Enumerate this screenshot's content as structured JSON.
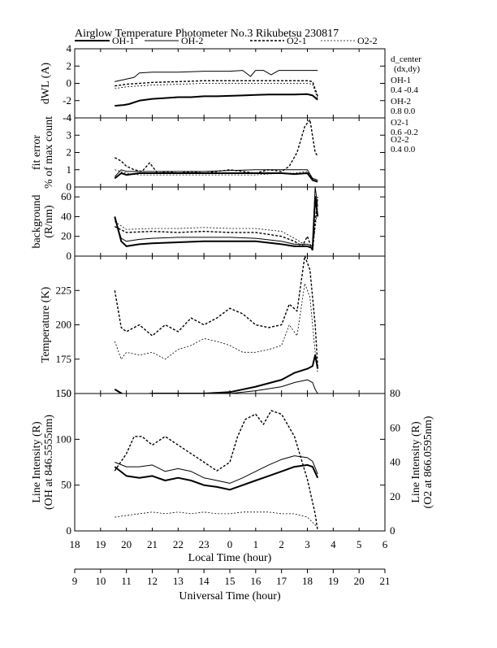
{
  "title": "Airglow Temperature Photometer No.3  Rikubetsu    230817",
  "legend": [
    {
      "label": "OH-1",
      "style": "solid-thick"
    },
    {
      "label": "OH-2",
      "style": "solid-thin"
    },
    {
      "label": "O2-1",
      "style": "dashed-thick"
    },
    {
      "label": "O2-2",
      "style": "dashed-thin"
    }
  ],
  "d_center": {
    "heading": "d_center",
    "sub": "(dx,dy)",
    "entries": [
      {
        "name": "OH-1",
        "value": "0.4   -0.4"
      },
      {
        "name": "OH-2",
        "value": "0.8   0.0"
      },
      {
        "name": "O2-1",
        "value": "0.6   -0.2"
      },
      {
        "name": "O2-2",
        "value": "0.4   0.0"
      }
    ]
  },
  "x_axis_local": {
    "label": "Local Time (hour)",
    "ticks": [
      "18",
      "19",
      "20",
      "21",
      "22",
      "23",
      "0",
      "1",
      "2",
      "3",
      "4",
      "5",
      "6"
    ]
  },
  "x_axis_ut": {
    "label": "Universal Time (hour)",
    "ticks": [
      "9",
      "10",
      "11",
      "12",
      "13",
      "14",
      "15",
      "16",
      "17",
      "18",
      "19",
      "20",
      "21"
    ]
  },
  "chart_data": [
    {
      "type": "line",
      "ylabel": "dWL (A)",
      "ylim": [
        -4,
        4
      ],
      "yticks": [
        "4",
        "2",
        "0",
        "-2",
        "-4"
      ],
      "x_unit": "Local Time (hour)",
      "series": [
        {
          "name": "OH-1",
          "x": [
            19.55,
            19.9,
            20.1,
            20.5,
            21,
            21.5,
            22,
            22.5,
            23,
            23.5,
            24,
            24.5,
            25,
            25.5,
            26,
            26.5,
            27,
            27.2,
            27.4
          ],
          "y": [
            -2.6,
            -2.5,
            -2.4,
            -2.0,
            -1.8,
            -1.7,
            -1.6,
            -1.6,
            -1.5,
            -1.5,
            -1.45,
            -1.4,
            -1.35,
            -1.3,
            -1.3,
            -1.3,
            -1.25,
            -1.4,
            -1.9
          ]
        },
        {
          "name": "OH-2",
          "x": [
            19.55,
            20,
            20.3,
            20.5,
            21,
            22,
            23,
            24,
            24.5,
            24.8,
            25,
            25.3,
            25.6,
            25.9,
            26.2,
            27,
            27.4
          ],
          "y": [
            0.2,
            0.5,
            0.7,
            1.2,
            1.3,
            1.3,
            1.4,
            1.4,
            1.5,
            0.8,
            1.5,
            1.5,
            1.0,
            1.5,
            1.5,
            1.5,
            1.5
          ]
        },
        {
          "name": "O2-1",
          "x": [
            19.55,
            20,
            21,
            22,
            23,
            24,
            25,
            26,
            27,
            27.2,
            27.4
          ],
          "y": [
            -0.3,
            -0.1,
            0.1,
            0.2,
            0.3,
            0.3,
            0.3,
            0.3,
            0.3,
            0.2,
            -1.5
          ]
        },
        {
          "name": "O2-2",
          "x": [
            19.55,
            20,
            21,
            22,
            23,
            24,
            25,
            26,
            27,
            27.2,
            27.4
          ],
          "y": [
            -0.6,
            -0.4,
            -0.2,
            -0.1,
            0.0,
            0.0,
            0.0,
            0.0,
            0.0,
            -0.1,
            -1.8
          ]
        }
      ]
    },
    {
      "type": "line",
      "ylabel": "fit error",
      "ylabel2": "% of max count",
      "ylim": [
        0,
        4
      ],
      "yticks": [
        "4",
        "3",
        "2",
        "1",
        "0"
      ],
      "series": [
        {
          "name": "OH-1",
          "x": [
            19.55,
            19.8,
            20,
            20.5,
            21,
            22,
            23,
            24,
            25,
            26,
            26.5,
            27,
            27.2,
            27.4
          ],
          "y": [
            0.5,
            0.8,
            0.7,
            0.8,
            0.8,
            0.8,
            0.8,
            0.8,
            0.8,
            0.8,
            0.75,
            0.8,
            0.4,
            0.3
          ]
        },
        {
          "name": "OH-2",
          "x": [
            19.55,
            19.8,
            20,
            20.5,
            21,
            22,
            23,
            24,
            25,
            26,
            26.5,
            27,
            27.2,
            27.4
          ],
          "y": [
            0.6,
            1.0,
            0.9,
            0.9,
            0.9,
            0.9,
            0.9,
            0.95,
            1.0,
            1.0,
            1.0,
            1.0,
            0.5,
            0.4
          ]
        },
        {
          "name": "O2-1",
          "x": [
            19.55,
            19.8,
            20,
            20.3,
            20.6,
            20.9,
            21.2,
            21.6,
            22,
            22.5,
            23,
            23.5,
            24,
            24.5,
            25,
            25.5,
            26,
            26.3,
            26.6,
            26.9,
            27.1,
            27.3,
            27.4
          ],
          "y": [
            1.7,
            1.5,
            1.2,
            1.0,
            0.9,
            1.4,
            0.8,
            0.9,
            0.8,
            0.9,
            0.8,
            0.9,
            1.0,
            0.9,
            0.8,
            1.0,
            0.9,
            1.2,
            2.0,
            3.5,
            3.9,
            2.0,
            1.8
          ]
        },
        {
          "name": "O2-2",
          "x": [
            19.55,
            20,
            20.5,
            21,
            22,
            23,
            24,
            25,
            26,
            26.5,
            27,
            27.2,
            27.4
          ],
          "y": [
            1.0,
            0.8,
            0.7,
            0.7,
            0.7,
            0.7,
            0.7,
            0.7,
            0.8,
            0.8,
            0.9,
            0.5,
            0.4
          ]
        }
      ]
    },
    {
      "type": "line",
      "ylabel": "background",
      "ylabel2": "(R/nm)",
      "ylim": [
        0,
        70
      ],
      "yticks": [
        "60",
        "40",
        "20",
        "0"
      ],
      "series": [
        {
          "name": "OH-1",
          "x": [
            19.55,
            19.8,
            20,
            20.5,
            21,
            22,
            23,
            24,
            25,
            26,
            26.5,
            27,
            27.2,
            27.3,
            27.4
          ],
          "y": [
            40,
            15,
            10,
            12,
            13,
            14,
            15,
            15,
            15,
            12,
            10,
            10,
            8,
            60,
            40
          ]
        },
        {
          "name": "OH-2",
          "x": [
            19.55,
            19.8,
            20,
            20.5,
            21,
            22,
            23,
            24,
            25,
            26,
            26.5,
            27,
            27.2,
            27.3,
            27.4
          ],
          "y": [
            38,
            18,
            15,
            17,
            18,
            19,
            19,
            19,
            18,
            15,
            12,
            12,
            10,
            70,
            50
          ]
        },
        {
          "name": "O2-1",
          "x": [
            19.55,
            20,
            21,
            22,
            23,
            24,
            25,
            26,
            26.5,
            26.8,
            27,
            27.2,
            27.4
          ],
          "y": [
            30,
            24,
            25,
            24,
            25,
            24,
            24,
            20,
            15,
            10,
            20,
            5,
            60
          ]
        },
        {
          "name": "O2-2",
          "x": [
            19.55,
            20,
            21,
            22,
            23,
            24,
            25,
            26,
            26.5,
            27,
            27.2,
            27.4
          ],
          "y": [
            35,
            27,
            28,
            28,
            29,
            28,
            28,
            25,
            18,
            10,
            8,
            50
          ]
        }
      ]
    },
    {
      "type": "line",
      "ylabel": "Temperature (K)",
      "ylim": [
        150,
        250
      ],
      "yticks": [
        "225",
        "200",
        "175",
        "150"
      ],
      "series": [
        {
          "name": "OH-1",
          "x": [
            19.55,
            20,
            21,
            22,
            23,
            24,
            25,
            26,
            26.5,
            27,
            27.2,
            27.3,
            27.4
          ],
          "y": [
            153,
            148,
            150,
            150,
            150,
            151,
            155,
            160,
            165,
            168,
            170,
            178,
            168
          ]
        },
        {
          "name": "OH-2",
          "x": [
            19.55,
            20,
            21,
            22,
            23,
            24,
            25,
            26,
            26.5,
            27,
            27.2,
            27.3,
            27.4
          ],
          "y": [
            149,
            147,
            149,
            149,
            150,
            150,
            152,
            155,
            158,
            160,
            158,
            153,
            150
          ]
        },
        {
          "name": "O2-1",
          "x": [
            19.55,
            19.8,
            20,
            20.5,
            21,
            21.5,
            22,
            22.5,
            23,
            23.5,
            24,
            24.5,
            25,
            25.5,
            26,
            26.3,
            26.6,
            26.9,
            27.1,
            27.3,
            27.4
          ],
          "y": [
            225,
            198,
            195,
            200,
            192,
            200,
            195,
            205,
            200,
            205,
            212,
            208,
            200,
            198,
            200,
            215,
            210,
            250,
            240,
            200,
            170
          ]
        },
        {
          "name": "O2-2",
          "x": [
            19.55,
            19.8,
            20,
            20.5,
            21,
            21.5,
            22,
            22.5,
            23,
            23.5,
            24,
            24.5,
            25,
            25.5,
            26,
            26.3,
            26.6,
            26.9,
            27.1,
            27.3,
            27.4
          ],
          "y": [
            188,
            175,
            180,
            178,
            180,
            175,
            182,
            185,
            190,
            188,
            185,
            180,
            180,
            182,
            185,
            200,
            192,
            230,
            220,
            180,
            165
          ]
        }
      ]
    },
    {
      "type": "line",
      "ylabel": "Line Intensity (R)",
      "ylabel2": "(OH at 846.5555nm)",
      "y2label": "Line Intensity (R)",
      "y2label2": "(O2 at 866.0595nm)",
      "ylim": [
        0,
        150
      ],
      "yticks": [
        "150",
        "100",
        "50",
        "0"
      ],
      "y2lim": [
        0,
        80
      ],
      "y2ticks": [
        "80",
        "60",
        "40",
        "20",
        "0"
      ],
      "series": [
        {
          "name": "OH-1",
          "x": [
            19.55,
            20,
            20.5,
            21,
            21.5,
            22,
            22.5,
            23,
            23.5,
            24,
            24.5,
            25,
            25.5,
            26,
            26.5,
            27,
            27.2,
            27.4
          ],
          "y": [
            70,
            60,
            58,
            60,
            55,
            58,
            55,
            50,
            48,
            45,
            50,
            55,
            60,
            65,
            70,
            72,
            70,
            58
          ]
        },
        {
          "name": "OH-2",
          "x": [
            19.55,
            20,
            20.5,
            21,
            21.5,
            22,
            22.5,
            23,
            23.5,
            24,
            24.5,
            25,
            25.5,
            26,
            26.5,
            27,
            27.2,
            27.4
          ],
          "y": [
            75,
            70,
            70,
            72,
            65,
            68,
            65,
            58,
            55,
            52,
            58,
            65,
            72,
            78,
            82,
            80,
            76,
            62
          ]
        },
        {
          "name": "O2-1",
          "x": [
            19.55,
            20,
            20.3,
            20.6,
            21,
            21.5,
            22,
            22.5,
            23,
            23.5,
            24,
            24.3,
            24.6,
            25,
            25.3,
            25.6,
            26,
            26.5,
            27,
            27.3,
            27.4
          ],
          "y": [
            35,
            45,
            55,
            55,
            50,
            55,
            50,
            45,
            40,
            35,
            40,
            55,
            65,
            68,
            62,
            70,
            68,
            55,
            30,
            10,
            0
          ]
        },
        {
          "name": "O2-2",
          "x": [
            19.55,
            20,
            20.5,
            21,
            21.5,
            22,
            22.5,
            23,
            23.5,
            24,
            24.5,
            25,
            25.5,
            26,
            26.5,
            27,
            27.2,
            27.4
          ],
          "y": [
            8,
            9,
            10,
            11,
            10,
            11,
            10,
            11,
            10,
            10,
            11,
            11,
            11,
            10,
            10,
            8,
            5,
            2
          ]
        }
      ]
    }
  ]
}
